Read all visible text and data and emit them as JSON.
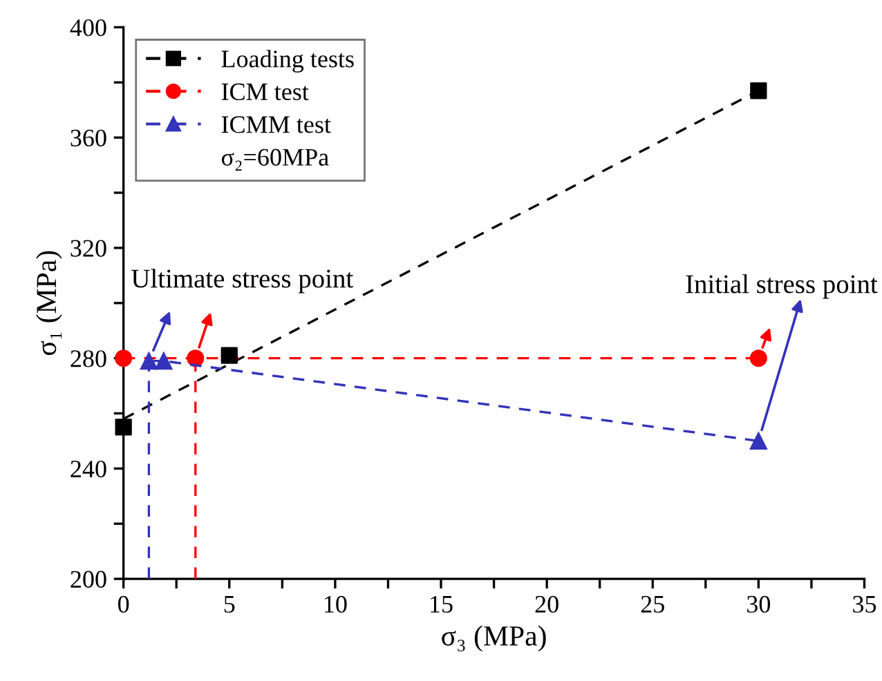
{
  "chart_data": {
    "type": "line",
    "xlabel": "σ₃ (MPa)",
    "ylabel": "σ₁ (MPa)",
    "xlim": [
      0,
      35
    ],
    "xticks": [
      0,
      {
        "value": 2.5,
        "label": null
      },
      5,
      {
        "value": 7.5,
        "label": null
      },
      10,
      {
        "value": 12.5,
        "label": null
      },
      15,
      {
        "value": 17.5,
        "label": null
      },
      20,
      {
        "value": 22.5,
        "label": null
      },
      25,
      {
        "value": 27.5,
        "label": null
      },
      30,
      {
        "value": 32.5,
        "label": null
      },
      35
    ],
    "ylim": [
      200,
      400
    ],
    "yticks": [
      200,
      {
        "value": 220,
        "label": null
      },
      240,
      {
        "value": 260,
        "label": null
      },
      280,
      {
        "value": 300,
        "label": null
      },
      320,
      {
        "value": 340,
        "label": null
      },
      360,
      {
        "value": 380,
        "label": null
      },
      400
    ],
    "grid": false,
    "legend": "top left",
    "legend_title": "σ₂=60MPa",
    "series": [
      {
        "name": "Loading tests",
        "type": "scatter",
        "color": "#000000",
        "marker": "square",
        "x": [
          0,
          5,
          30
        ],
        "values": [
          255,
          281,
          377
        ]
      },
      {
        "color": "#000000",
        "line_style": "dashed",
        "marker": "none",
        "x": [
          0,
          30
        ],
        "values": [
          258,
          377
        ]
      },
      {
        "name": "ICM test",
        "color": "#ff0000",
        "line_style": "dashed",
        "marker": "circle",
        "x": [
          0,
          3.4,
          30
        ],
        "values": [
          280,
          280,
          280
        ]
      },
      {
        "color": "#ff0000",
        "line_style": "dashed",
        "marker": "none",
        "x": [
          3.4,
          3.4
        ],
        "values": [
          200,
          280
        ]
      },
      {
        "name": "ICMM test",
        "color": "#3333bb",
        "line_style": "dashed",
        "marker": "triangle",
        "x": [
          1.2,
          1.9,
          30
        ],
        "values": [
          279,
          279,
          250
        ]
      },
      {
        "color": "#3333bb",
        "line_style": "dashed",
        "marker": "none",
        "x": [
          1.2,
          1.2
        ],
        "values": [
          200,
          279
        ]
      }
    ],
    "annotations": [
      "Ultimate stress point",
      "Initial stress point"
    ]
  }
}
